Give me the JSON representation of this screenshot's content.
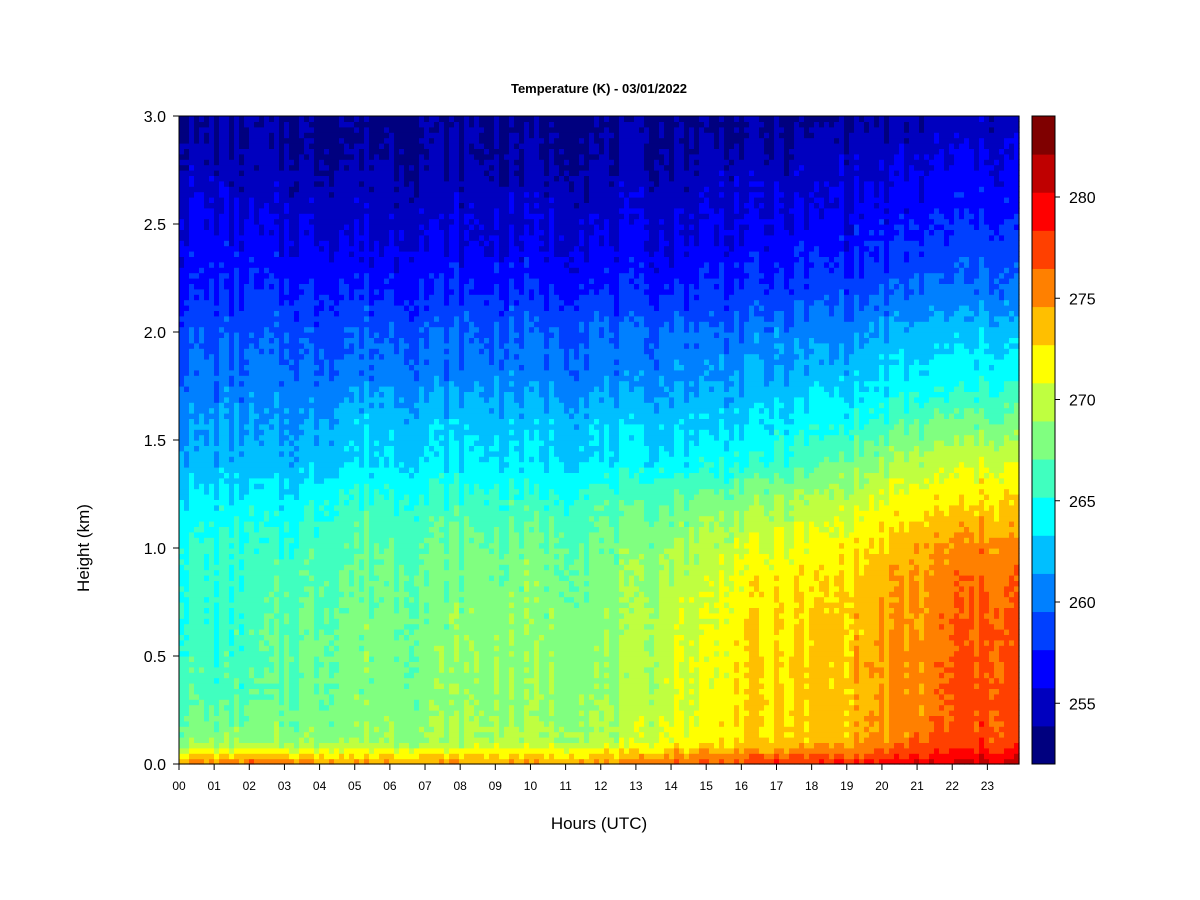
{
  "chart_data": {
    "type": "heatmap",
    "title": "Temperature (K) - 03/01/2022",
    "xlabel": "Hours (UTC)",
    "ylabel": "Height (km)",
    "x_ticks": [
      "00",
      "01",
      "02",
      "03",
      "04",
      "05",
      "06",
      "07",
      "08",
      "09",
      "10",
      "11",
      "12",
      "13",
      "14",
      "15",
      "16",
      "17",
      "18",
      "19",
      "20",
      "21",
      "22",
      "23"
    ],
    "xlim": [
      0,
      23.9
    ],
    "y_ticks": [
      "0.0",
      "0.5",
      "1.0",
      "1.5",
      "2.0",
      "2.5",
      "3.0"
    ],
    "ylim": [
      0,
      3.0
    ],
    "colorbar": {
      "range": [
        252,
        284
      ],
      "step": 2.5,
      "tick_values": [
        255,
        260,
        265,
        270,
        275,
        280
      ],
      "tick_labels": [
        "255",
        "260",
        "265",
        "270",
        "275",
        "280"
      ],
      "colors": [
        "#00007F",
        "#0000BF",
        "#0000FF",
        "#0040FF",
        "#0080FF",
        "#00BFFF",
        "#00FFFF",
        "#40FFBF",
        "#80FF80",
        "#BFFF40",
        "#FFFF00",
        "#FFBF00",
        "#FF8000",
        "#FF4000",
        "#FF0000",
        "#BF0000",
        "#7F0000"
      ]
    },
    "hours": [
      0,
      1,
      2,
      3,
      4,
      5,
      6,
      7,
      8,
      9,
      10,
      11,
      12,
      13,
      14,
      15,
      16,
      17,
      18,
      19,
      20,
      21,
      22,
      23,
      23.9
    ],
    "heights_km": [
      0.0,
      0.1,
      0.3,
      0.5,
      0.8,
      1.0,
      1.2,
      1.4,
      1.6,
      1.8,
      2.0,
      2.2,
      2.4,
      2.6,
      2.8,
      3.0
    ],
    "temperature_K": [
      [
        275.5,
        268.5,
        266.5,
        266.0,
        265.5,
        265.5,
        264.0,
        262.0,
        261.0,
        260.0,
        259.0,
        257.5,
        256.5,
        255.5,
        254.5,
        253.5
      ],
      [
        275.5,
        268.5,
        266.5,
        266.0,
        265.5,
        265.5,
        264.0,
        262.0,
        261.0,
        260.0,
        259.0,
        257.5,
        256.5,
        255.5,
        254.5,
        253.5
      ],
      [
        276.5,
        268.5,
        266.5,
        266.0,
        265.8,
        265.5,
        264.0,
        262.0,
        261.0,
        260.0,
        259.0,
        257.5,
        256.5,
        255.2,
        254.2,
        253.5
      ],
      [
        276.0,
        268.5,
        267.0,
        267.0,
        266.5,
        265.5,
        264.0,
        262.0,
        261.0,
        260.0,
        259.0,
        257.5,
        256.0,
        255.0,
        254.0,
        253.5
      ],
      [
        276.0,
        268.5,
        267.5,
        267.5,
        267.0,
        266.5,
        265.0,
        262.5,
        261.5,
        260.0,
        259.0,
        257.5,
        256.0,
        255.0,
        254.0,
        253.5
      ],
      [
        275.0,
        269.0,
        268.0,
        268.0,
        267.5,
        267.0,
        266.0,
        263.5,
        262.5,
        260.5,
        259.5,
        257.5,
        256.0,
        255.0,
        254.0,
        253.5
      ],
      [
        275.0,
        269.0,
        268.0,
        268.0,
        267.5,
        267.0,
        266.0,
        263.5,
        262.5,
        260.5,
        259.5,
        257.5,
        256.0,
        255.0,
        254.0,
        253.5
      ],
      [
        275.0,
        269.0,
        268.0,
        268.0,
        267.5,
        267.0,
        266.0,
        263.5,
        262.5,
        260.5,
        259.5,
        257.5,
        256.0,
        255.0,
        254.0,
        253.5
      ],
      [
        275.0,
        269.0,
        268.5,
        268.5,
        268.0,
        267.5,
        266.0,
        263.5,
        262.5,
        260.5,
        259.5,
        257.5,
        256.0,
        255.0,
        254.0,
        253.5
      ],
      [
        275.0,
        269.5,
        268.5,
        268.5,
        268.0,
        267.5,
        266.0,
        263.5,
        262.5,
        260.5,
        259.5,
        257.5,
        256.0,
        255.0,
        254.0,
        253.5
      ],
      [
        275.0,
        269.5,
        268.5,
        268.5,
        268.0,
        267.5,
        266.0,
        263.5,
        262.5,
        260.5,
        259.5,
        257.5,
        256.0,
        255.0,
        254.0,
        253.5
      ],
      [
        275.0,
        269.5,
        268.5,
        268.5,
        268.0,
        267.5,
        266.0,
        263.5,
        262.5,
        260.5,
        259.5,
        257.5,
        256.0,
        255.0,
        254.0,
        253.5
      ],
      [
        275.5,
        269.5,
        268.5,
        268.5,
        268.0,
        267.5,
        266.5,
        263.5,
        262.5,
        260.5,
        259.5,
        257.5,
        256.0,
        255.0,
        254.0,
        253.5
      ],
      [
        276.0,
        270.0,
        269.0,
        269.0,
        268.5,
        268.0,
        266.5,
        263.5,
        262.5,
        260.5,
        259.5,
        257.5,
        256.0,
        255.0,
        254.0,
        253.5
      ],
      [
        276.5,
        271.5,
        270.5,
        270.5,
        270.0,
        269.0,
        267.5,
        264.0,
        262.5,
        261.0,
        260.0,
        257.5,
        256.0,
        255.0,
        254.0,
        253.5
      ],
      [
        277.0,
        272.0,
        271.0,
        271.0,
        270.5,
        269.5,
        268.0,
        264.5,
        263.0,
        261.0,
        260.0,
        258.0,
        256.5,
        255.5,
        254.5,
        253.5
      ],
      [
        277.5,
        273.0,
        272.5,
        272.5,
        272.0,
        270.5,
        268.5,
        265.0,
        263.0,
        261.5,
        260.0,
        258.0,
        256.5,
        255.5,
        254.5,
        253.5
      ],
      [
        278.0,
        273.0,
        272.5,
        272.5,
        272.0,
        271.0,
        269.0,
        265.5,
        263.5,
        261.5,
        260.5,
        258.0,
        256.5,
        255.5,
        254.5,
        253.5
      ],
      [
        278.5,
        273.5,
        273.0,
        273.0,
        272.5,
        271.5,
        269.5,
        266.5,
        264.0,
        262.0,
        260.5,
        258.5,
        257.0,
        255.5,
        254.5,
        253.5
      ],
      [
        279.0,
        274.0,
        273.5,
        273.5,
        273.0,
        272.0,
        270.0,
        267.5,
        264.5,
        262.5,
        261.0,
        258.5,
        257.0,
        256.0,
        255.0,
        253.8
      ],
      [
        279.5,
        275.0,
        274.5,
        274.5,
        274.0,
        273.0,
        271.0,
        268.5,
        265.5,
        263.0,
        261.5,
        259.0,
        257.5,
        256.0,
        255.0,
        254.0
      ],
      [
        280.0,
        276.0,
        275.0,
        275.0,
        274.5,
        274.0,
        272.0,
        269.5,
        266.5,
        263.5,
        262.0,
        259.5,
        258.0,
        256.5,
        255.5,
        254.0
      ],
      [
        280.5,
        277.0,
        276.5,
        276.5,
        276.0,
        275.0,
        272.5,
        270.0,
        267.0,
        264.0,
        262.5,
        260.0,
        258.5,
        257.0,
        256.0,
        254.5
      ],
      [
        281.0,
        277.5,
        277.0,
        277.0,
        276.5,
        275.5,
        273.0,
        270.5,
        267.5,
        264.5,
        262.5,
        260.0,
        258.5,
        257.0,
        256.0,
        254.5
      ],
      [
        281.0,
        277.5,
        277.0,
        277.0,
        276.5,
        275.5,
        273.0,
        270.5,
        267.5,
        264.5,
        262.5,
        260.0,
        258.5,
        257.0,
        256.0,
        254.5
      ]
    ]
  }
}
